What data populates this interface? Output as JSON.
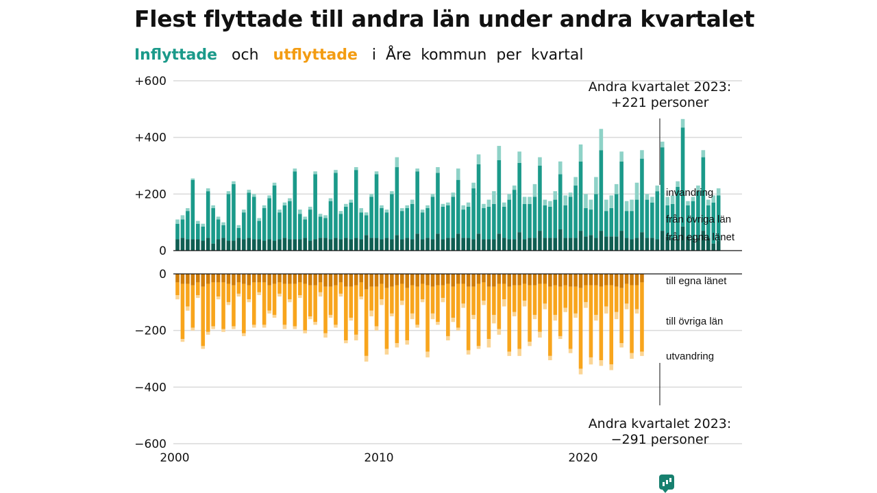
{
  "chart_data": {
    "type": "bar",
    "title": "Flest flyttade till andra län under andra kvartalet",
    "subtitle": {
      "inflow": "Inflyttade",
      "and": "och",
      "outflow": "utflyttade",
      "rest_words": [
        "i",
        "Åre",
        "kommun",
        "per",
        "kvartal"
      ]
    },
    "x_range": [
      2000,
      2027
    ],
    "x_ticks": [
      "2000",
      "2010",
      "2020"
    ],
    "y_ticks_top": [
      "+600",
      "+400",
      "+200",
      "0"
    ],
    "y_ticks_bottom": [
      "0",
      "−200",
      "−400",
      "−600"
    ],
    "ylim_top": [
      0,
      600
    ],
    "ylim_bottom": [
      -600,
      0
    ],
    "grid": true,
    "colors": {
      "in_own": "#0f5e52",
      "in_other": "#1b9a8a",
      "in_immigration": "#8ed2c7",
      "out_own": "#cf7c08",
      "out_other": "#f8a51d",
      "out_emigration": "#fbd595"
    },
    "legend_in": [
      "invandring",
      "från övriga län",
      "från egna länet"
    ],
    "legend_out": [
      "till egna länet",
      "till övriga län",
      "utvandring"
    ],
    "annotation_top": [
      "Andra kvartalet 2023:",
      "+221 personer"
    ],
    "annotation_bottom": [
      "Andra kvartalet 2023:",
      "−291 personer"
    ],
    "in_total": [
      110,
      125,
      150,
      255,
      105,
      95,
      220,
      160,
      120,
      100,
      210,
      245,
      90,
      145,
      215,
      200,
      115,
      160,
      195,
      240,
      145,
      170,
      185,
      290,
      145,
      120,
      155,
      280,
      130,
      125,
      185,
      285,
      140,
      165,
      180,
      295,
      150,
      135,
      200,
      280,
      160,
      145,
      210,
      330,
      150,
      160,
      180,
      290,
      145,
      160,
      200,
      295,
      165,
      170,
      205,
      290,
      160,
      170,
      240,
      340,
      165,
      180,
      210,
      370,
      170,
      200,
      230,
      350,
      190,
      190,
      235,
      330,
      180,
      175,
      210,
      315,
      195,
      205,
      260,
      375,
      200,
      180,
      260,
      430,
      180,
      195,
      235,
      350,
      175,
      180,
      240,
      355,
      200,
      190,
      230,
      385,
      190,
      195,
      245,
      465,
      175,
      190,
      230,
      355,
      180,
      195,
      220
    ],
    "in_imm": [
      15,
      15,
      10,
      5,
      10,
      10,
      10,
      10,
      10,
      10,
      10,
      10,
      10,
      10,
      10,
      10,
      10,
      10,
      10,
      10,
      10,
      10,
      10,
      10,
      15,
      10,
      10,
      10,
      10,
      10,
      10,
      10,
      10,
      10,
      10,
      10,
      15,
      10,
      10,
      10,
      10,
      10,
      10,
      35,
      10,
      10,
      15,
      10,
      10,
      10,
      10,
      20,
      10,
      10,
      15,
      40,
      15,
      15,
      20,
      35,
      15,
      25,
      45,
      50,
      15,
      20,
      15,
      40,
      25,
      25,
      45,
      30,
      20,
      20,
      30,
      45,
      35,
      15,
      30,
      60,
      50,
      35,
      60,
      75,
      40,
      45,
      35,
      35,
      35,
      40,
      60,
      30,
      20,
      20,
      20,
      20,
      30,
      30,
      20,
      30,
      15,
      15,
      20,
      25,
      20,
      25,
      25
    ],
    "in_own": [
      40,
      45,
      40,
      40,
      40,
      35,
      45,
      25,
      40,
      45,
      35,
      35,
      45,
      40,
      45,
      40,
      40,
      35,
      40,
      35,
      40,
      45,
      40,
      40,
      40,
      45,
      35,
      40,
      45,
      45,
      40,
      45,
      40,
      45,
      40,
      45,
      40,
      55,
      45,
      45,
      40,
      45,
      40,
      55,
      40,
      45,
      40,
      60,
      40,
      45,
      40,
      60,
      40,
      45,
      45,
      60,
      45,
      45,
      40,
      60,
      40,
      40,
      40,
      60,
      45,
      40,
      40,
      65,
      40,
      45,
      45,
      70,
      45,
      45,
      45,
      75,
      45,
      45,
      45,
      70,
      50,
      55,
      45,
      70,
      50,
      50,
      50,
      70,
      45,
      40,
      45,
      65,
      45,
      45,
      40,
      70,
      50,
      45,
      40,
      85,
      50,
      45,
      45,
      70,
      45,
      25,
      35
    ],
    "out_total": [
      90,
      240,
      130,
      200,
      85,
      265,
      215,
      195,
      90,
      205,
      110,
      195,
      80,
      220,
      100,
      190,
      75,
      190,
      140,
      155,
      80,
      195,
      100,
      195,
      85,
      210,
      160,
      180,
      80,
      225,
      155,
      190,
      80,
      245,
      165,
      235,
      90,
      310,
      150,
      200,
      110,
      285,
      150,
      260,
      110,
      250,
      160,
      190,
      100,
      295,
      160,
      180,
      100,
      235,
      170,
      200,
      120,
      285,
      160,
      265,
      110,
      260,
      175,
      215,
      115,
      290,
      150,
      290,
      115,
      255,
      160,
      225,
      125,
      305,
      165,
      230,
      135,
      280,
      155,
      355,
      120,
      320,
      165,
      325,
      140,
      340,
      160,
      260,
      125,
      300,
      140,
      290
    ],
    "out_emig": [
      15,
      10,
      15,
      10,
      10,
      10,
      10,
      10,
      10,
      10,
      10,
      10,
      10,
      10,
      10,
      10,
      10,
      10,
      10,
      10,
      10,
      15,
      10,
      10,
      10,
      10,
      10,
      10,
      15,
      15,
      10,
      10,
      10,
      10,
      10,
      20,
      10,
      20,
      20,
      15,
      20,
      20,
      10,
      15,
      15,
      15,
      20,
      10,
      10,
      20,
      20,
      10,
      15,
      15,
      15,
      10,
      15,
      15,
      15,
      10,
      15,
      30,
      30,
      20,
      25,
      15,
      15,
      25,
      20,
      15,
      15,
      20,
      20,
      15,
      20,
      10,
      15,
      15,
      15,
      20,
      20,
      25,
      20,
      20,
      25,
      20,
      25,
      15,
      20,
      20,
      15,
      15
    ],
    "out_own": [
      30,
      35,
      35,
      40,
      30,
      45,
      35,
      30,
      30,
      30,
      35,
      40,
      30,
      35,
      40,
      30,
      30,
      30,
      40,
      35,
      30,
      35,
      35,
      35,
      30,
      35,
      40,
      40,
      30,
      45,
      45,
      40,
      30,
      45,
      45,
      40,
      30,
      55,
      45,
      45,
      35,
      50,
      45,
      40,
      35,
      50,
      40,
      45,
      35,
      40,
      45,
      40,
      40,
      35,
      45,
      35,
      35,
      45,
      45,
      35,
      30,
      45,
      45,
      35,
      35,
      45,
      40,
      40,
      35,
      40,
      40,
      35,
      35,
      45,
      40,
      45,
      40,
      45,
      45,
      50,
      40,
      40,
      40,
      45,
      40,
      40,
      45,
      50,
      35,
      40,
      40,
      30
    ]
  }
}
